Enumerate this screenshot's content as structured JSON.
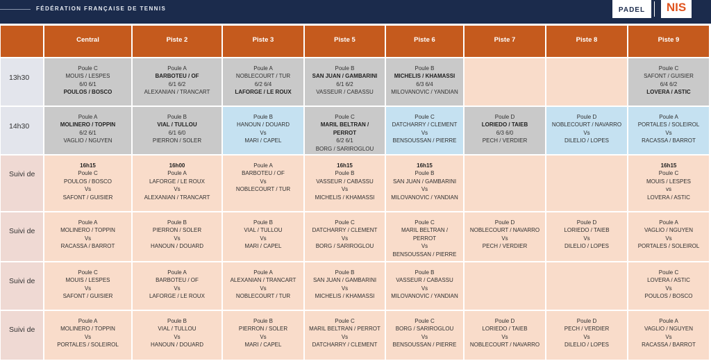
{
  "header": {
    "title": "FÉDÉRATION FRANÇAISE DE TENNIS",
    "logos": [
      "PADEL",
      "NIS"
    ]
  },
  "table": {
    "columns": [
      "Central",
      "Piste 2",
      "Piste 3",
      "Piste 5",
      "Piste 6",
      "Piste 7",
      "Piste 8",
      "Piste 9"
    ],
    "rows": [
      {
        "label": "13h30",
        "color": "#e3e5ec",
        "cells": [
          {
            "color": "#c9c9c9",
            "bold": [
              3
            ],
            "lines": [
              "Poule C",
              "MOUIS / LESPES",
              "6/0 6/1",
              "POULOS / BOSCO"
            ]
          },
          {
            "color": "#c9c9c9",
            "bold": [
              1
            ],
            "lines": [
              "Poule A",
              "BARBOTEU / OF",
              "6/1 6/2",
              "ALEXANIAN / TRANCART"
            ]
          },
          {
            "color": "#c9c9c9",
            "bold": [
              3
            ],
            "lines": [
              "Poule A",
              "NOBLECOURT / TUR",
              "6/2 6/4",
              "LAFORGE / LE ROUX"
            ]
          },
          {
            "color": "#c9c9c9",
            "bold": [
              1
            ],
            "lines": [
              "Poule B",
              "SAN JUAN / GAMBARINI",
              "6/1 6/2",
              "VASSEUR / CABASSU"
            ]
          },
          {
            "color": "#c9c9c9",
            "bold": [
              1
            ],
            "lines": [
              "Poule B",
              "MICHELIS / KHAMASSI",
              "6/3 6/4",
              "MILOVANOVIC / YANDIAN"
            ]
          },
          {
            "color": "#f9dcca",
            "bold": [],
            "lines": []
          },
          {
            "color": "#f9dcca",
            "bold": [],
            "lines": []
          },
          {
            "color": "#c9c9c9",
            "bold": [
              3
            ],
            "lines": [
              "Poule C",
              "SAFONT / GUISIER",
              "6/4 6/2",
              "LOVERA / ASTIC"
            ]
          }
        ]
      },
      {
        "label": "14h30",
        "color": "#e3e5ec",
        "cells": [
          {
            "color": "#c9c9c9",
            "bold": [
              1
            ],
            "lines": [
              "Poule A",
              "MOLINERO / TOPPIN",
              "6/2 6/1",
              "VAGLIO / NGUYEN"
            ]
          },
          {
            "color": "#c9c9c9",
            "bold": [
              1
            ],
            "lines": [
              "Poule B",
              "VIAL / TULLOU",
              "6/1 6/0",
              "PIERRON / SOLER"
            ]
          },
          {
            "color": "#c5e1f1",
            "bold": [],
            "lines": [
              "Poule B",
              "HANOUN / DOUARD",
              "Vs",
              "MARI / CAPEL"
            ]
          },
          {
            "color": "#c9c9c9",
            "bold": [
              1
            ],
            "lines": [
              "Poule C",
              "MARIL BELTRAN / PERROT",
              "6/2 6/1",
              "BORG / SARIROGLOU"
            ]
          },
          {
            "color": "#c5e1f1",
            "bold": [],
            "lines": [
              "Poule C",
              "DATCHARRY / CLEMENT",
              "Vs",
              "BENSOUSSAN / PIERRE"
            ]
          },
          {
            "color": "#c9c9c9",
            "bold": [
              1
            ],
            "lines": [
              "Poule D",
              "LORIEDO / TAIEB",
              "6/3 6/0",
              "PECH / VERDIER"
            ]
          },
          {
            "color": "#c5e1f1",
            "bold": [],
            "lines": [
              "Poule D",
              "NOBLECOURT / NAVARRO",
              "Vs",
              "DILELIO / LOPES"
            ]
          },
          {
            "color": "#c5e1f1",
            "bold": [],
            "lines": [
              "Poule A",
              "PORTALES / SOLEIROL",
              "Vs",
              "RACASSA / BARROT"
            ]
          }
        ]
      },
      {
        "label": "Suivi de",
        "color": "#efd9d3",
        "cells": [
          {
            "color": "#f9dcca",
            "bold": [
              0
            ],
            "lines": [
              "16h15",
              "Poule C",
              "POULOS / BOSCO",
              "Vs",
              "SAFONT / GUISIER"
            ]
          },
          {
            "color": "#f9dcca",
            "bold": [
              0
            ],
            "lines": [
              "16h00",
              "Poule A",
              "LAFORGE / LE ROUX",
              "Vs",
              "ALEXANIAN / TRANCART"
            ]
          },
          {
            "color": "#f9dcca",
            "bold": [],
            "lines": [
              "Poule A",
              "BARBOTEU / OF",
              "Vs",
              "NOBLECOURT / TUR"
            ]
          },
          {
            "color": "#f9dcca",
            "bold": [
              0
            ],
            "lines": [
              "16h15",
              "Poule B",
              "VASSEUR / CABASSU",
              "Vs",
              "MICHELIS / KHAMASSI"
            ]
          },
          {
            "color": "#f9dcca",
            "bold": [
              0
            ],
            "lines": [
              "16h15",
              "Poule B",
              "SAN JUAN / GAMBARINI",
              "Vs",
              "MILOVANOVIC / YANDIAN"
            ]
          },
          {
            "color": "#f9dcca",
            "bold": [],
            "lines": []
          },
          {
            "color": "#f9dcca",
            "bold": [],
            "lines": []
          },
          {
            "color": "#f9dcca",
            "bold": [
              0
            ],
            "lines": [
              "16h15",
              "Poule C",
              "MOUIS / LESPES",
              "vs",
              "LOVERA / ASTIC"
            ]
          }
        ]
      },
      {
        "label": "Suivi de",
        "color": "#efd9d3",
        "cells": [
          {
            "color": "#f9dcca",
            "bold": [],
            "lines": [
              "Poule A",
              "MOLINERO / TOPPIN",
              "Vs",
              "RACASSA / BARROT"
            ]
          },
          {
            "color": "#f9dcca",
            "bold": [],
            "lines": [
              "Poule B",
              "PIERRON / SOLER",
              "Vs",
              "HANOUN / DOUARD"
            ]
          },
          {
            "color": "#f9dcca",
            "bold": [],
            "lines": [
              "Poule B",
              "VIAL / TULLOU",
              "Vs",
              "MARI / CAPEL"
            ]
          },
          {
            "color": "#f9dcca",
            "bold": [],
            "lines": [
              "Poule C",
              "DATCHARRY / CLEMENT",
              "Vs",
              "BORG / SARIROGLOU"
            ]
          },
          {
            "color": "#f9dcca",
            "bold": [],
            "lines": [
              "Poule C",
              "MARIL BELTRAN / PERROT",
              "Vs",
              "BENSOUSSAN / PIERRE"
            ]
          },
          {
            "color": "#f9dcca",
            "bold": [],
            "lines": [
              "Poule D",
              "NOBLECOURT / NAVARRO",
              "Vs",
              "PECH / VERDIER"
            ]
          },
          {
            "color": "#f9dcca",
            "bold": [],
            "lines": [
              "Poule D",
              "LORIEDO / TAIEB",
              "Vs",
              "DILELIO / LOPES"
            ]
          },
          {
            "color": "#f9dcca",
            "bold": [],
            "lines": [
              "Poule A",
              "VAGLIO / NGUYEN",
              "Vs",
              "PORTALES / SOLEIROL"
            ]
          }
        ]
      },
      {
        "label": "Suivi de",
        "color": "#efd9d3",
        "cells": [
          {
            "color": "#f9dcca",
            "bold": [],
            "lines": [
              "Poule C",
              "MOUIS / LESPES",
              "Vs",
              "SAFONT / GUISIER"
            ]
          },
          {
            "color": "#f9dcca",
            "bold": [],
            "lines": [
              "Poule A",
              "BARBOTEU / OF",
              "Vs",
              "LAFORGE / LE ROUX"
            ]
          },
          {
            "color": "#f9dcca",
            "bold": [],
            "lines": [
              "Poule A",
              "ALEXANIAN / TRANCART",
              "Vs",
              "NOBLECOURT / TUR"
            ]
          },
          {
            "color": "#f9dcca",
            "bold": [],
            "lines": [
              "Poule B",
              "SAN JUAN / GAMBARINI",
              "Vs",
              "MICHELIS / KHAMASSI"
            ]
          },
          {
            "color": "#f9dcca",
            "bold": [],
            "lines": [
              "Poule B",
              "VASSEUR / CABASSU",
              "Vs",
              "MILOVANOVIC / YANDIAN"
            ]
          },
          {
            "color": "#f9dcca",
            "bold": [],
            "lines": []
          },
          {
            "color": "#f9dcca",
            "bold": [],
            "lines": []
          },
          {
            "color": "#f9dcca",
            "bold": [],
            "lines": [
              "Poule C",
              "LOVERA / ASTIC",
              "Vs",
              "POULOS / BOSCO"
            ]
          }
        ]
      },
      {
        "label": "Suivi de",
        "color": "#efd9d3",
        "cells": [
          {
            "color": "#f9dcca",
            "bold": [],
            "lines": [
              "Poule A",
              "MOLINERO / TOPPIN",
              "Vs",
              "PORTALES / SOLEIROL"
            ]
          },
          {
            "color": "#f9dcca",
            "bold": [],
            "lines": [
              "Poule B",
              "VIAL / TULLOU",
              "Vs",
              "HANOUN / DOUARD"
            ]
          },
          {
            "color": "#f9dcca",
            "bold": [],
            "lines": [
              "Poule B",
              "PIERRON / SOLER",
              "Vs",
              "MARI / CAPEL"
            ]
          },
          {
            "color": "#f9dcca",
            "bold": [],
            "lines": [
              "Poule C",
              "MARIL BELTRAN / PERROT",
              "Vs",
              "DATCHARRY / CLEMENT"
            ]
          },
          {
            "color": "#f9dcca",
            "bold": [],
            "lines": [
              "Poule C",
              "BORG / SARIROGLOU",
              "Vs",
              "BENSOUSSAN / PIERRE"
            ]
          },
          {
            "color": "#f9dcca",
            "bold": [],
            "lines": [
              "Poule D",
              "LORIEDO / TAIEB",
              "Vs",
              "NOBLECOURT / NAVARRO"
            ]
          },
          {
            "color": "#f9dcca",
            "bold": [],
            "lines": [
              "Poule D",
              "PECH / VERDIER",
              "Vs",
              "DILELIO / LOPES"
            ]
          },
          {
            "color": "#f9dcca",
            "bold": [],
            "lines": [
              "Poule A",
              "VAGLIO / NGUYEN",
              "Vs",
              "RACASSA / BARROT"
            ]
          }
        ]
      }
    ]
  }
}
